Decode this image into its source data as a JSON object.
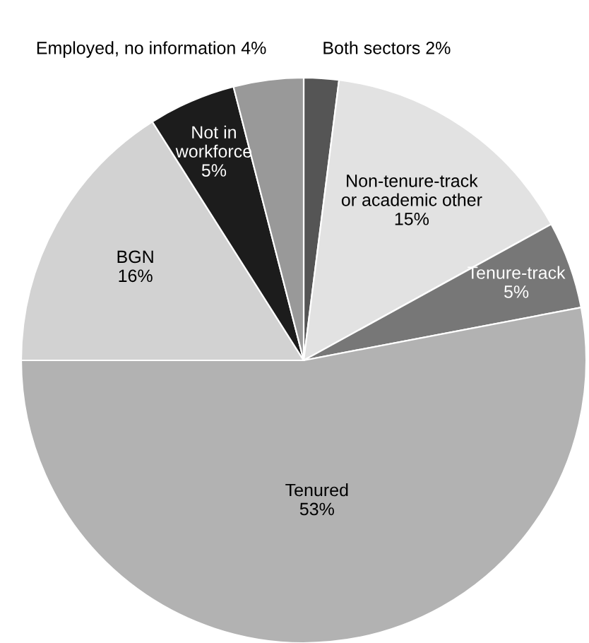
{
  "chart_data": {
    "type": "pie",
    "categories": [
      "Both sectors",
      "Non-tenure-track\nor academic other",
      "Tenure-track",
      "Tenured",
      "BGN",
      "Not in\nworkforce",
      "Employed, no information"
    ],
    "values": [
      2,
      15,
      5,
      53,
      16,
      5,
      4
    ],
    "value_labels": [
      "2%",
      "15%",
      "5%",
      "53%",
      "16%",
      "5%",
      "4%"
    ],
    "colors": [
      "#555555",
      "#e2e2e2",
      "#777777",
      "#b2b2b2",
      "#d2d2d2",
      "#1c1c1c",
      "#999999"
    ],
    "legend": false
  }
}
